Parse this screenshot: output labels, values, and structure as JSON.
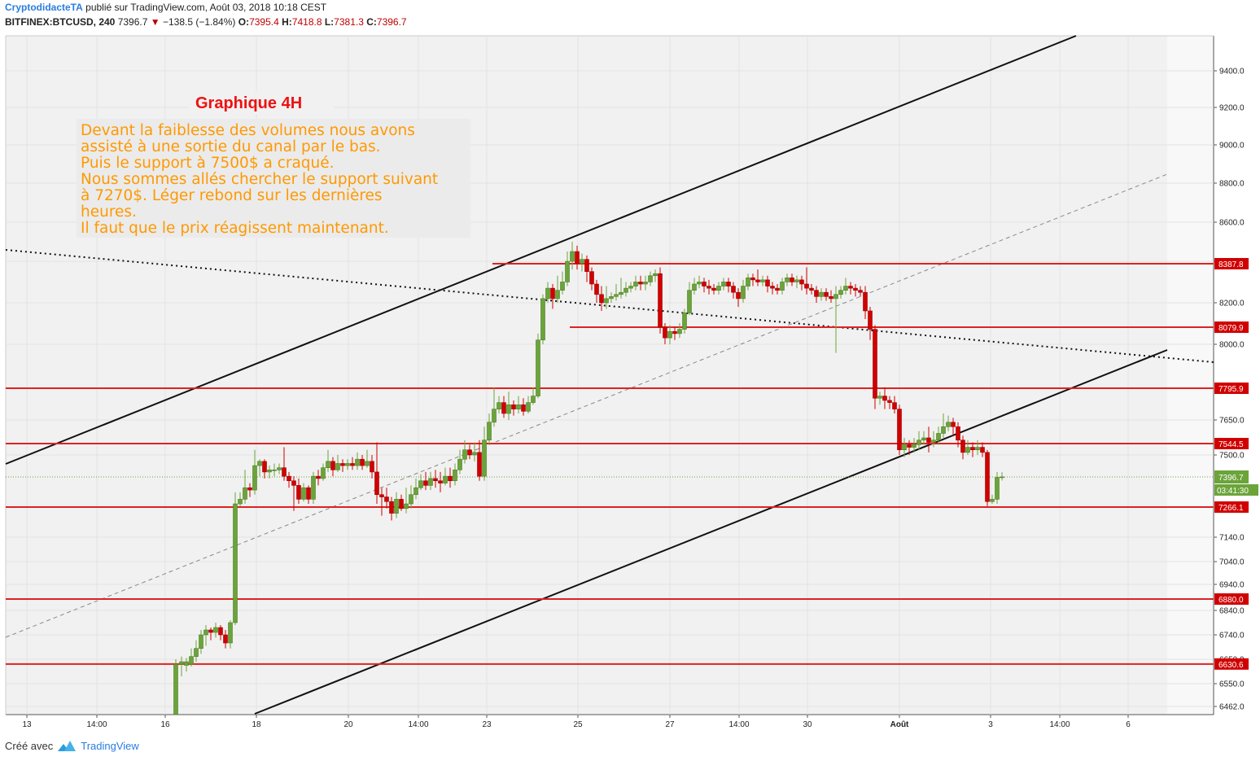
{
  "header": {
    "author": "CryptodidacteTA",
    "published_text": "publié sur TradingView.com, Août 03, 2018 10:18 CEST",
    "symbol": "BITFINEX:BTCUSD, 240",
    "last": "7396.7",
    "change": "−138.5 (−1.84%)",
    "o_label": "O:",
    "o_value": "7395.4",
    "h_label": "H:",
    "h_value": "7418.8",
    "l_label": "L:",
    "l_value": "7381.3",
    "c_label": "C:",
    "c_value": "7396.7"
  },
  "footer": {
    "created_with": "Créé avec",
    "brand": "TradingView"
  },
  "chart_data": {
    "type": "candlestick",
    "symbol": "BITFINEX:BTCUSD",
    "interval": "240",
    "annotation_title": "Graphique 4H",
    "annotation_lines": [
      "Devant la faiblesse des volumes nous avons",
      "assisté à une sortie du canal par le bas.",
      "Puis le support à 7500$ a craqué.",
      "Nous sommes allés chercher le support suivant",
      "à 7270$. Léger rebond sur les dernières",
      "heures.",
      "Il faut que le prix réagissent maintenant."
    ],
    "y_ticks": [
      "9400.0",
      "9200.0",
      "9000.0",
      "8800.0",
      "8600.0",
      "8400.0",
      "8200.0",
      "8000.0",
      "7650.0",
      "7500.0",
      "7140.0",
      "7040.0",
      "6940.0",
      "6840.0",
      "6740.0",
      "6650.0",
      "6550.0",
      "6462.0"
    ],
    "x_ticks": [
      "13",
      "14:00",
      "16",
      "18",
      "20",
      "14:00",
      "23",
      "25",
      "27",
      "14:00",
      "30",
      "Août",
      "3",
      "14:00",
      "6"
    ],
    "price_levels": [
      "8387.8",
      "8079.9",
      "7795.9",
      "7544.5",
      "7266.1",
      "6880.0",
      "6630.6"
    ],
    "current_price": "7396.7",
    "countdown": "03:41:30",
    "colors": {
      "up": "#6ba43a",
      "down": "#d10000",
      "level": "#dd2222",
      "text": "#ff9900",
      "title": "#ee1111"
    },
    "candles": [
      [
        216,
        6380,
        6630,
        6350,
        6650
      ],
      [
        223,
        6630,
        6640,
        6580,
        6660
      ],
      [
        229,
        6625,
        6640,
        6600,
        6655
      ],
      [
        235,
        6630,
        6660,
        6620,
        6690
      ],
      [
        241,
        6660,
        6690,
        6640,
        6720
      ],
      [
        247,
        6690,
        6740,
        6670,
        6760
      ],
      [
        253,
        6740,
        6760,
        6700,
        6780
      ],
      [
        259,
        6760,
        6750,
        6720,
        6770
      ],
      [
        265,
        6750,
        6770,
        6730,
        6790
      ],
      [
        271,
        6770,
        6740,
        6720,
        6780
      ],
      [
        277,
        6740,
        6710,
        6690,
        6760
      ],
      [
        283,
        6710,
        6790,
        6690,
        6800
      ],
      [
        289,
        6790,
        7280,
        6780,
        7330
      ],
      [
        295,
        7280,
        7300,
        7270,
        7330
      ],
      [
        301,
        7300,
        7350,
        7280,
        7430
      ],
      [
        307,
        7350,
        7340,
        7310,
        7370
      ],
      [
        313,
        7340,
        7450,
        7320,
        7520
      ],
      [
        319,
        7450,
        7470,
        7400,
        7480
      ],
      [
        325,
        7470,
        7420,
        7390,
        7480
      ],
      [
        331,
        7420,
        7430,
        7390,
        7450
      ],
      [
        337,
        7430,
        7430,
        7400,
        7460
      ],
      [
        343,
        7430,
        7440,
        7410,
        7460
      ],
      [
        349,
        7440,
        7400,
        7380,
        7530
      ],
      [
        355,
        7400,
        7380,
        7350,
        7420
      ],
      [
        361,
        7380,
        7360,
        7250,
        7400
      ],
      [
        367,
        7360,
        7300,
        7280,
        7390
      ],
      [
        373,
        7300,
        7350,
        7290,
        7370
      ],
      [
        379,
        7350,
        7300,
        7280,
        7360
      ],
      [
        385,
        7300,
        7400,
        7280,
        7420
      ],
      [
        391,
        7400,
        7390,
        7360,
        7430
      ],
      [
        397,
        7390,
        7440,
        7380,
        7460
      ],
      [
        403,
        7440,
        7470,
        7420,
        7520
      ],
      [
        409,
        7470,
        7430,
        7400,
        7490
      ],
      [
        415,
        7430,
        7460,
        7420,
        7500
      ],
      [
        421,
        7460,
        7450,
        7420,
        7480
      ],
      [
        427,
        7450,
        7460,
        7430,
        7480
      ],
      [
        433,
        7460,
        7450,
        7430,
        7490
      ],
      [
        439,
        7450,
        7480,
        7430,
        7510
      ],
      [
        445,
        7480,
        7450,
        7430,
        7500
      ],
      [
        451,
        7450,
        7470,
        7440,
        7520
      ],
      [
        457,
        7470,
        7420,
        7390,
        7500
      ],
      [
        463,
        7420,
        7320,
        7280,
        7550
      ],
      [
        469,
        7320,
        7310,
        7230,
        7350
      ],
      [
        475,
        7310,
        7290,
        7260,
        7350
      ],
      [
        481,
        7290,
        7240,
        7210,
        7310
      ],
      [
        487,
        7240,
        7300,
        7220,
        7330
      ],
      [
        493,
        7300,
        7260,
        7250,
        7320
      ],
      [
        499,
        7260,
        7280,
        7240,
        7350
      ],
      [
        505,
        7280,
        7320,
        7260,
        7360
      ],
      [
        511,
        7320,
        7350,
        7300,
        7390
      ],
      [
        517,
        7350,
        7380,
        7340,
        7410
      ],
      [
        523,
        7380,
        7360,
        7340,
        7420
      ],
      [
        529,
        7360,
        7390,
        7340,
        7420
      ],
      [
        535,
        7390,
        7380,
        7350,
        7430
      ],
      [
        541,
        7380,
        7370,
        7330,
        7420
      ],
      [
        547,
        7370,
        7400,
        7360,
        7440
      ],
      [
        553,
        7400,
        7380,
        7350,
        7440
      ],
      [
        559,
        7380,
        7430,
        7360,
        7460
      ],
      [
        565,
        7430,
        7480,
        7410,
        7520
      ],
      [
        571,
        7480,
        7520,
        7460,
        7560
      ],
      [
        577,
        7520,
        7500,
        7480,
        7540
      ],
      [
        583,
        7500,
        7510,
        7470,
        7550
      ],
      [
        589,
        7510,
        7400,
        7380,
        7560
      ],
      [
        595,
        7400,
        7560,
        7380,
        7620
      ],
      [
        601,
        7560,
        7640,
        7540,
        7680
      ],
      [
        607,
        7640,
        7700,
        7620,
        7800
      ],
      [
        613,
        7700,
        7730,
        7680,
        7760
      ],
      [
        619,
        7730,
        7680,
        7660,
        7760
      ],
      [
        625,
        7680,
        7720,
        7650,
        7780
      ],
      [
        631,
        7720,
        7700,
        7670,
        7740
      ],
      [
        637,
        7700,
        7720,
        7680,
        7760
      ],
      [
        643,
        7720,
        7690,
        7670,
        7750
      ],
      [
        649,
        7690,
        7730,
        7680,
        7760
      ],
      [
        655,
        7730,
        7760,
        7720,
        7800
      ],
      [
        661,
        7760,
        8020,
        7750,
        8050
      ],
      [
        667,
        8020,
        8220,
        8000,
        8240
      ],
      [
        673,
        8220,
        8270,
        8200,
        8300
      ],
      [
        679,
        8270,
        8220,
        8170,
        8290
      ],
      [
        685,
        8220,
        8260,
        8200,
        8330
      ],
      [
        691,
        8260,
        8300,
        8240,
        8350
      ],
      [
        697,
        8300,
        8400,
        8280,
        8450
      ],
      [
        703,
        8400,
        8450,
        8360,
        8500
      ],
      [
        709,
        8450,
        8390,
        8360,
        8480
      ],
      [
        715,
        8390,
        8410,
        8350,
        8440
      ],
      [
        721,
        8410,
        8350,
        8300,
        8430
      ],
      [
        727,
        8350,
        8290,
        8260,
        8370
      ],
      [
        733,
        8290,
        8240,
        8200,
        8310
      ],
      [
        739,
        8240,
        8200,
        8160,
        8280
      ],
      [
        745,
        8200,
        8220,
        8170,
        8280
      ],
      [
        751,
        8220,
        8230,
        8200,
        8250
      ],
      [
        757,
        8230,
        8240,
        8210,
        8290
      ],
      [
        763,
        8240,
        8250,
        8220,
        8320
      ],
      [
        769,
        8250,
        8270,
        8230,
        8300
      ],
      [
        775,
        8270,
        8280,
        8250,
        8300
      ],
      [
        781,
        8280,
        8300,
        8260,
        8330
      ],
      [
        787,
        8300,
        8290,
        8260,
        8330
      ],
      [
        793,
        8290,
        8300,
        8260,
        8330
      ],
      [
        799,
        8300,
        8330,
        8280,
        8350
      ],
      [
        805,
        8330,
        8340,
        8300,
        8360
      ],
      [
        811,
        8340,
        8080,
        8050,
        8370
      ],
      [
        817,
        8080,
        8030,
        8000,
        8100
      ],
      [
        823,
        8030,
        8060,
        8000,
        8090
      ],
      [
        829,
        8060,
        8050,
        8020,
        8080
      ],
      [
        835,
        8050,
        8070,
        8030,
        8100
      ],
      [
        841,
        8070,
        8150,
        8050,
        8170
      ],
      [
        847,
        8150,
        8260,
        8140,
        8300
      ],
      [
        853,
        8260,
        8290,
        8240,
        8320
      ],
      [
        859,
        8290,
        8300,
        8270,
        8330
      ],
      [
        865,
        8300,
        8280,
        8250,
        8320
      ],
      [
        871,
        8280,
        8270,
        8240,
        8310
      ],
      [
        877,
        8270,
        8260,
        8240,
        8290
      ],
      [
        883,
        8260,
        8280,
        8240,
        8300
      ],
      [
        889,
        8280,
        8300,
        8260,
        8320
      ],
      [
        895,
        8300,
        8280,
        8250,
        8320
      ],
      [
        901,
        8280,
        8250,
        8220,
        8300
      ],
      [
        907,
        8250,
        8220,
        8180,
        8270
      ],
      [
        913,
        8220,
        8280,
        8200,
        8310
      ],
      [
        919,
        8280,
        8320,
        8260,
        8340
      ],
      [
        925,
        8320,
        8310,
        8280,
        8340
      ],
      [
        931,
        8310,
        8300,
        8280,
        8360
      ],
      [
        937,
        8300,
        8310,
        8280,
        8330
      ],
      [
        943,
        8310,
        8280,
        8250,
        8330
      ],
      [
        949,
        8280,
        8270,
        8240,
        8300
      ],
      [
        955,
        8270,
        8260,
        8240,
        8290
      ],
      [
        961,
        8260,
        8300,
        8240,
        8320
      ],
      [
        967,
        8300,
        8320,
        8280,
        8340
      ],
      [
        973,
        8320,
        8300,
        8280,
        8340
      ],
      [
        979,
        8300,
        8310,
        8270,
        8330
      ],
      [
        985,
        8310,
        8290,
        8260,
        8330
      ],
      [
        991,
        8290,
        8270,
        8240,
        8370
      ],
      [
        997,
        8270,
        8260,
        8240,
        8290
      ],
      [
        1003,
        8260,
        8230,
        8200,
        8280
      ],
      [
        1009,
        8230,
        8250,
        8210,
        8270
      ],
      [
        1015,
        8250,
        8230,
        8210,
        8270
      ],
      [
        1021,
        8230,
        8220,
        8200,
        8260
      ],
      [
        1027,
        8220,
        8240,
        7960,
        8280
      ],
      [
        1033,
        8240,
        8260,
        8220,
        8280
      ],
      [
        1039,
        8260,
        8280,
        8240,
        8320
      ],
      [
        1045,
        8280,
        8270,
        8240,
        8300
      ],
      [
        1051,
        8270,
        8260,
        8230,
        8290
      ],
      [
        1057,
        8260,
        8250,
        8230,
        8280
      ],
      [
        1063,
        8250,
        8160,
        8120,
        8280
      ],
      [
        1069,
        8160,
        8070,
        8020,
        8180
      ],
      [
        1075,
        8070,
        7750,
        7700,
        8090
      ],
      [
        1081,
        7750,
        7760,
        7720,
        7780
      ],
      [
        1087,
        7760,
        7740,
        7700,
        7800
      ],
      [
        1093,
        7740,
        7730,
        7700,
        7760
      ],
      [
        1099,
        7730,
        7700,
        7680,
        7760
      ],
      [
        1105,
        7700,
        7520,
        7500,
        7720
      ],
      [
        1111,
        7520,
        7540,
        7490,
        7570
      ],
      [
        1117,
        7540,
        7530,
        7500,
        7560
      ],
      [
        1123,
        7530,
        7540,
        7510,
        7570
      ],
      [
        1129,
        7540,
        7560,
        7520,
        7600
      ],
      [
        1135,
        7560,
        7570,
        7540,
        7600
      ],
      [
        1141,
        7570,
        7550,
        7510,
        7620
      ],
      [
        1147,
        7550,
        7560,
        7530,
        7600
      ],
      [
        1153,
        7560,
        7590,
        7540,
        7620
      ],
      [
        1159,
        7590,
        7620,
        7570,
        7680
      ],
      [
        1165,
        7620,
        7640,
        7600,
        7670
      ],
      [
        1171,
        7640,
        7620,
        7580,
        7660
      ],
      [
        1177,
        7620,
        7560,
        7530,
        7640
      ],
      [
        1183,
        7560,
        7510,
        7480,
        7580
      ],
      [
        1189,
        7510,
        7530,
        7500,
        7560
      ],
      [
        1195,
        7530,
        7520,
        7490,
        7550
      ],
      [
        1201,
        7520,
        7530,
        7500,
        7560
      ],
      [
        1207,
        7530,
        7510,
        7490,
        7550
      ],
      [
        1213,
        7510,
        7290,
        7270,
        7520
      ],
      [
        1219,
        7290,
        7300,
        7280,
        7320
      ],
      [
        1225,
        7300,
        7395,
        7280,
        7420
      ],
      [
        1231,
        7395,
        7397,
        7381,
        7419
      ]
    ]
  }
}
